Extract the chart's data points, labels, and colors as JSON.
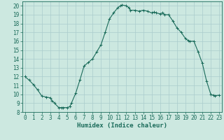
{
  "x_full": [
    0,
    0.5,
    1,
    1.5,
    2,
    2.5,
    3,
    3.2,
    3.5,
    4,
    4.3,
    4.5,
    5,
    5.3,
    5.5,
    6,
    6.5,
    7,
    7.5,
    8,
    8.5,
    9,
    9.5,
    10,
    10.5,
    11,
    11.3,
    11.5,
    12,
    12.3,
    12.5,
    13,
    13.5,
    14,
    14.5,
    15,
    15.3,
    15.5,
    16,
    16.3,
    16.5,
    17,
    17.5,
    18,
    18.5,
    19,
    19.3,
    19.5,
    20,
    20.5,
    21,
    21.5,
    22,
    22.3,
    22.5,
    23
  ],
  "y_full": [
    12.0,
    11.6,
    11.1,
    10.5,
    9.8,
    9.7,
    9.6,
    9.3,
    9.0,
    8.5,
    8.5,
    8.5,
    8.5,
    8.6,
    9.0,
    10.1,
    11.6,
    13.2,
    13.6,
    14.0,
    14.8,
    15.6,
    17.0,
    18.5,
    19.2,
    19.8,
    20.0,
    20.1,
    20.0,
    19.8,
    19.5,
    19.5,
    19.4,
    19.5,
    19.4,
    19.2,
    19.3,
    19.2,
    19.1,
    19.2,
    19.0,
    19.0,
    18.3,
    17.5,
    17.0,
    16.3,
    16.1,
    16.0,
    16.0,
    14.8,
    13.5,
    11.5,
    10.0,
    9.9,
    9.85,
    9.9
  ],
  "line_color": "#1a6b5a",
  "bg_color": "#cce8e0",
  "grid_color": "#aacccc",
  "xlabel": "Humidex (Indice chaleur)",
  "ylim": [
    8,
    20.5
  ],
  "xlim": [
    -0.3,
    23.3
  ],
  "yticks": [
    8,
    9,
    10,
    11,
    12,
    13,
    14,
    15,
    16,
    17,
    18,
    19,
    20
  ],
  "xticks": [
    0,
    1,
    2,
    3,
    4,
    5,
    6,
    7,
    8,
    9,
    10,
    11,
    12,
    13,
    14,
    15,
    16,
    17,
    18,
    19,
    20,
    21,
    22,
    23
  ],
  "marker": "+",
  "marker_size": 3,
  "linewidth": 0.8,
  "font_size": 5.5,
  "xlabel_fontsize": 6.5
}
